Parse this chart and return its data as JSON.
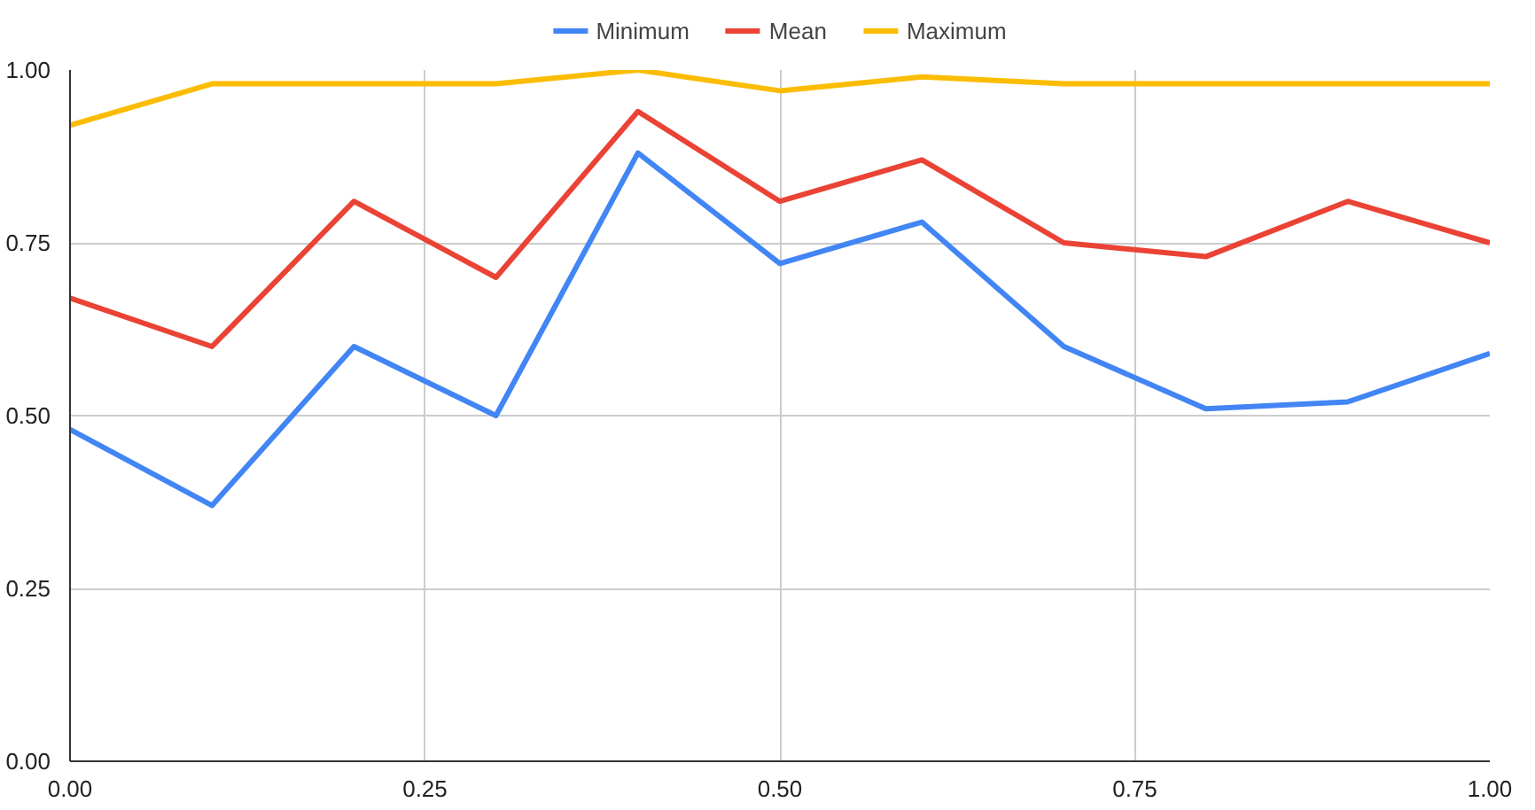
{
  "chart_data": {
    "type": "line",
    "x": [
      0,
      0.1,
      0.2,
      0.3,
      0.4,
      0.5,
      0.6,
      0.7,
      0.8,
      0.9,
      1.0
    ],
    "series": [
      {
        "name": "Minimum",
        "color": "#4285f4",
        "values": [
          0.48,
          0.37,
          0.6,
          0.5,
          0.88,
          0.72,
          0.78,
          0.6,
          0.51,
          0.52,
          0.59
        ]
      },
      {
        "name": "Mean",
        "color": "#ea4335",
        "values": [
          0.67,
          0.6,
          0.81,
          0.7,
          0.94,
          0.81,
          0.87,
          0.75,
          0.73,
          0.81,
          0.75
        ]
      },
      {
        "name": "Maximum",
        "color": "#fbbc04",
        "values": [
          0.92,
          0.98,
          0.98,
          0.98,
          1.0,
          0.97,
          0.99,
          0.98,
          0.98,
          0.98,
          0.98
        ]
      }
    ],
    "xlim": [
      0,
      1
    ],
    "ylim": [
      0,
      1
    ],
    "xticks": [
      {
        "value": 0,
        "label": "0.00"
      },
      {
        "value": 0.25,
        "label": "0.25"
      },
      {
        "value": 0.5,
        "label": "0.50"
      },
      {
        "value": 0.75,
        "label": "0.75"
      },
      {
        "value": 1,
        "label": "1.00"
      }
    ],
    "yticks": [
      {
        "value": 0,
        "label": "0.00"
      },
      {
        "value": 0.25,
        "label": "0.25"
      },
      {
        "value": 0.5,
        "label": "0.50"
      },
      {
        "value": 0.75,
        "label": "0.75"
      },
      {
        "value": 1,
        "label": "1.00"
      }
    ],
    "grid": true,
    "legend": "top",
    "marker": "none",
    "line_style": "solid"
  }
}
